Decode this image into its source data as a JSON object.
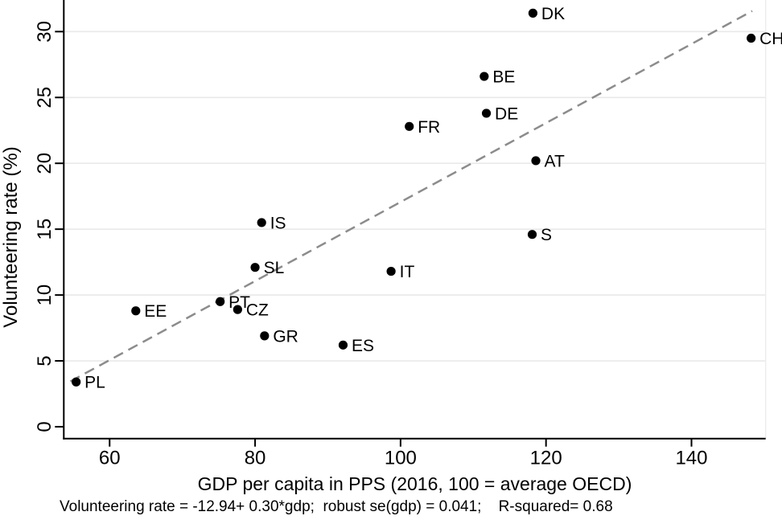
{
  "figure": {
    "y_axis_title": "Volunteering rate (%)",
    "x_axis_title": "GDP per capita in PPS (2016, 100 = average OECD)",
    "caption": "Volunteering rate = -12.94+ 0.30*gdp;  robust se(gdp) = 0.041;    R-squared= 0.68"
  },
  "chart_data": {
    "type": "scatter",
    "title": "",
    "xlabel": "GDP per capita in PPS (2016, 100 = average OECD)",
    "ylabel": "Volunteering rate (%)",
    "xlim": [
      53.7,
      150.2
    ],
    "ylim": [
      -0.9,
      32.4
    ],
    "x_ticks": [
      60,
      80,
      100,
      120,
      140
    ],
    "y_ticks": [
      0,
      5,
      10,
      15,
      20,
      25,
      30
    ],
    "grid": "horizontal gridlines at y = 5,10,15,20,25,30",
    "legend": "none",
    "points": [
      {
        "label": "PL",
        "x": 55.4,
        "y": 3.4
      },
      {
        "label": "EE",
        "x": 63.6,
        "y": 8.8
      },
      {
        "label": "PT",
        "x": 75.2,
        "y": 9.5
      },
      {
        "label": "CZ",
        "x": 77.6,
        "y": 8.9
      },
      {
        "label": "SL",
        "x": 80.0,
        "y": 12.1
      },
      {
        "label": "IS",
        "x": 80.9,
        "y": 15.5
      },
      {
        "label": "GR",
        "x": 81.3,
        "y": 6.9
      },
      {
        "label": "ES",
        "x": 92.1,
        "y": 6.2
      },
      {
        "label": "IT",
        "x": 98.7,
        "y": 11.8
      },
      {
        "label": "FR",
        "x": 101.2,
        "y": 22.8
      },
      {
        "label": "BE",
        "x": 111.5,
        "y": 26.6
      },
      {
        "label": "DE",
        "x": 111.8,
        "y": 23.8
      },
      {
        "label": "S",
        "x": 118.1,
        "y": 14.6
      },
      {
        "label": "AT",
        "x": 118.6,
        "y": 20.2
      },
      {
        "label": "DK",
        "x": 118.2,
        "y": 31.4
      },
      {
        "label": "CH",
        "x": 148.2,
        "y": 29.5
      }
    ],
    "fit_line": {
      "style": "dashed",
      "slope": 0.3,
      "intercept": -12.94,
      "x_start": 54.6,
      "x_end": 148.35
    },
    "stats": {
      "equation": "Volunteering rate = -12.94+ 0.30*gdp",
      "robust_se_gdp": "0.041",
      "r_squared": "0.68"
    },
    "colors": {
      "point": "#000000",
      "fit_line": "#8c8c8c",
      "gridline": "#e9e9e9",
      "axis": "#000000",
      "plot_border": "#ececec",
      "text": "#000000"
    }
  }
}
